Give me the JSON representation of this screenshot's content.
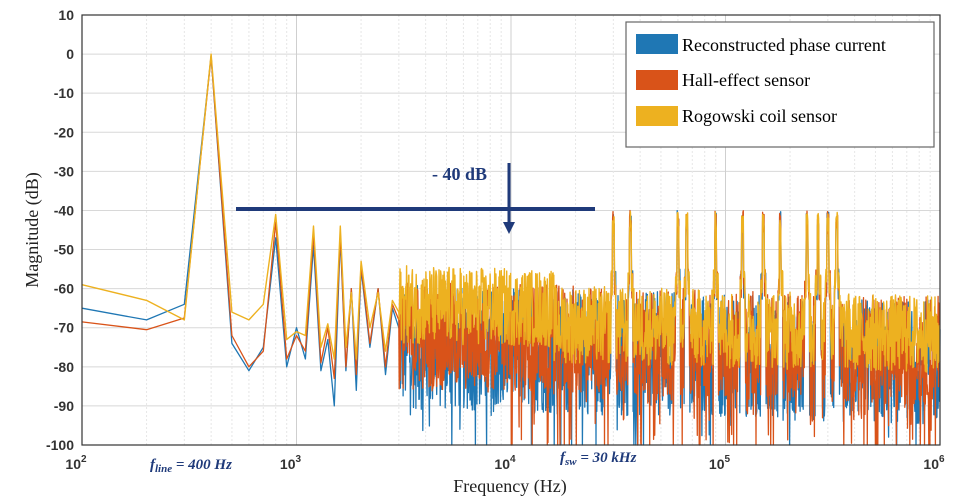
{
  "chart_data": {
    "type": "line",
    "title": "",
    "xlabel": "Frequency (Hz)",
    "ylabel": "Magnitude (dB)",
    "xscale": "log",
    "xlim": [
      100,
      1000000
    ],
    "ylim": [
      -100,
      10
    ],
    "grid": true,
    "x_tick_base": "10",
    "x_tick_exponents": [
      "2",
      "3",
      "4",
      "5",
      "6"
    ],
    "y_ticks": [
      "10",
      "0",
      "-10",
      "-20",
      "-30",
      "-40",
      "-50",
      "-60",
      "-70",
      "-80",
      "-90",
      "-100"
    ],
    "legend_position": "top-right",
    "series": [
      {
        "name": "Reconstructed phase current",
        "color": "#1f77b4",
        "x": [
          100,
          200,
          300,
          400,
          500,
          600,
          700,
          800,
          900,
          1000,
          1100,
          1200,
          1300,
          1400,
          1500,
          1600,
          1700,
          1800,
          1900,
          2000,
          2200,
          2400,
          2600,
          2800,
          3000
        ],
        "y": [
          -65,
          -68,
          -64,
          -0.5,
          -74,
          -81,
          -75,
          -47,
          -80,
          -70,
          -78,
          -49,
          -81,
          -73,
          -90,
          -47,
          -81,
          -60,
          -86,
          -55,
          -75,
          -60,
          -82,
          -65,
          -70
        ]
      },
      {
        "name": "Hall-effect sensor",
        "color": "#d95319",
        "x": [
          100,
          200,
          300,
          400,
          500,
          600,
          700,
          800,
          900,
          1000,
          1100,
          1200,
          1300,
          1400,
          1500,
          1600,
          1700,
          1800,
          1900,
          2000,
          2200,
          2400,
          2600,
          2800,
          3000
        ],
        "y": [
          -68.5,
          -70.5,
          -67.5,
          -0.5,
          -72,
          -80,
          -76,
          -43,
          -78,
          -72,
          -76,
          -46,
          -79,
          -70,
          -83,
          -46,
          -80,
          -60,
          -82,
          -54,
          -74,
          -60,
          -80,
          -64,
          -68
        ]
      },
      {
        "name": "Rogowski coil sensor",
        "color": "#edb120",
        "x": [
          100,
          200,
          300,
          400,
          500,
          600,
          700,
          800,
          900,
          1000,
          1100,
          1200,
          1300,
          1400,
          1500,
          1600,
          1700,
          1800,
          1900,
          2000,
          2200,
          2400,
          2600,
          2800,
          3000
        ],
        "y": [
          -59,
          -63,
          -68,
          0,
          -66,
          -68,
          -64,
          -41,
          -73,
          -71,
          -72,
          -44,
          -75,
          -69,
          -78,
          -44,
          -75,
          -61,
          -78,
          -53,
          -70,
          -61,
          -76,
          -63,
          -66
        ]
      }
    ],
    "switching_peaks_hz": [
      30000,
      36000,
      60000,
      66000,
      90000,
      120000,
      150000,
      180000,
      240000,
      270000,
      300000,
      330000
    ],
    "annotations": {
      "drop_label": "- 40 dB",
      "f_line_prefix": "f",
      "f_line_sub": "line",
      "f_line_value": " = 400 Hz",
      "f_sw_prefix": "f",
      "f_sw_sub": "sw",
      "f_sw_value": " = 30 kHz"
    }
  }
}
